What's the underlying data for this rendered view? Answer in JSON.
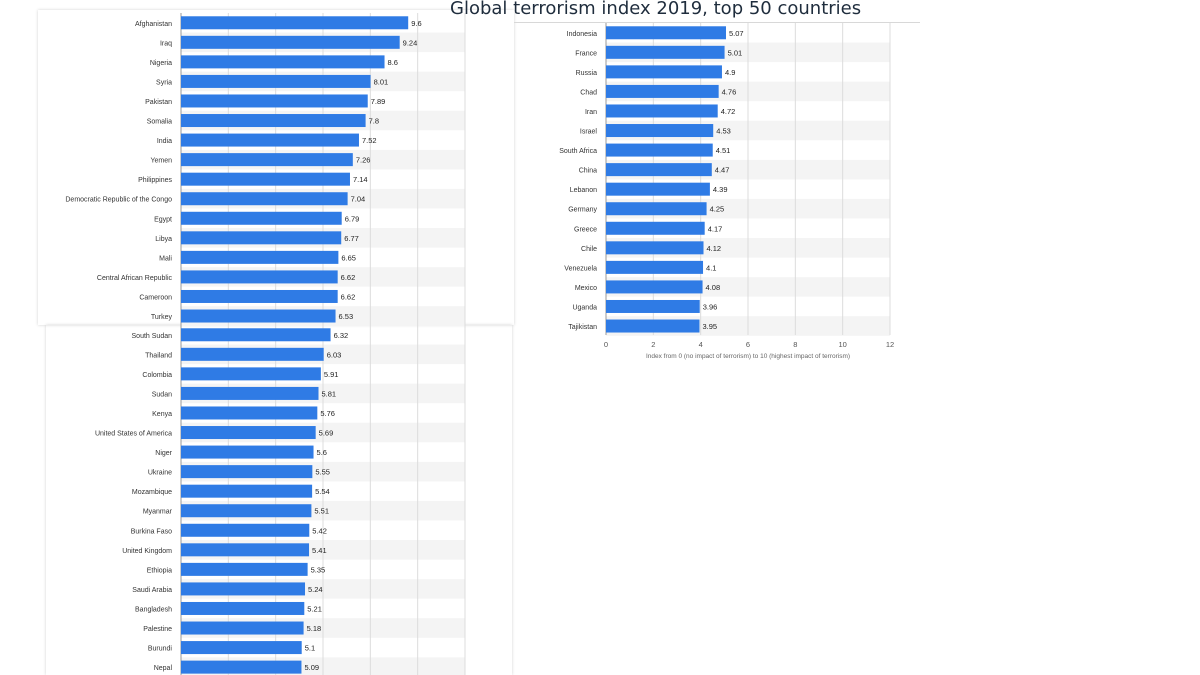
{
  "chart_data": {
    "type": "bar",
    "orientation": "horizontal",
    "title": "Global terrorism index 2019, top 50 countries",
    "xlabel": "Index from 0 (no impact of terrorism) to 10 (highest impact of terrorism)",
    "xlim": [
      0,
      12
    ],
    "xticks": [
      "0",
      "2",
      "4",
      "6",
      "8",
      "10",
      "12"
    ],
    "grid": true,
    "bar_color": "#2f7be5",
    "categories": [
      "Afghanistan",
      "Iraq",
      "Nigeria",
      "Syria",
      "Pakistan",
      "Somalia",
      "India",
      "Yemen",
      "Philippines",
      "Democratic Republic of the Congo",
      "Egypt",
      "Libya",
      "Mali",
      "Central African Republic",
      "Cameroon",
      "Turkey",
      "South Sudan",
      "Thailand",
      "Colombia",
      "Sudan",
      "Kenya",
      "United States of America",
      "Niger",
      "Ukraine",
      "Mozambique",
      "Myanmar",
      "Burkina Faso",
      "United Kingdom",
      "Ethiopia",
      "Saudi Arabia",
      "Bangladesh",
      "Palestine",
      "Burundi",
      "Nepal",
      "Indonesia",
      "France",
      "Russia",
      "Chad",
      "Iran",
      "Israel",
      "South Africa",
      "China",
      "Lebanon",
      "Germany",
      "Greece",
      "Chile",
      "Venezuela",
      "Mexico",
      "Uganda",
      "Tajikistan"
    ],
    "values": [
      9.6,
      9.24,
      8.6,
      8.01,
      7.89,
      7.8,
      7.52,
      7.26,
      7.14,
      7.04,
      6.79,
      6.77,
      6.65,
      6.62,
      6.62,
      6.53,
      6.32,
      6.03,
      5.91,
      5.81,
      5.76,
      5.69,
      5.6,
      5.55,
      5.54,
      5.51,
      5.42,
      5.41,
      5.35,
      5.24,
      5.21,
      5.18,
      5.1,
      5.09,
      5.07,
      5.01,
      4.9,
      4.76,
      4.72,
      4.53,
      4.51,
      4.47,
      4.39,
      4.25,
      4.17,
      4.12,
      4.1,
      4.08,
      3.96,
      3.95
    ],
    "value_labels": [
      "9.6",
      "9.24",
      "8.6",
      "8.01",
      "7.89",
      "7.8",
      "7.52",
      "7.26",
      "7.14",
      "7.04",
      "6.79",
      "6.77",
      "6.65",
      "6.62",
      "6.62",
      "6.53",
      "6.32",
      "6.03",
      "5.91",
      "5.81",
      "5.76",
      "5.69",
      "5.6",
      "5.55",
      "5.54",
      "5.51",
      "5.42",
      "5.41",
      "5.35",
      "5.24",
      "5.21",
      "5.18",
      "5.1",
      "5.09",
      "5.07",
      "5.01",
      "4.9",
      "4.76",
      "4.72",
      "4.53",
      "4.51",
      "4.47",
      "4.39",
      "4.25",
      "4.17",
      "4.12",
      "4.1",
      "4.08",
      "3.96",
      "3.95"
    ]
  }
}
